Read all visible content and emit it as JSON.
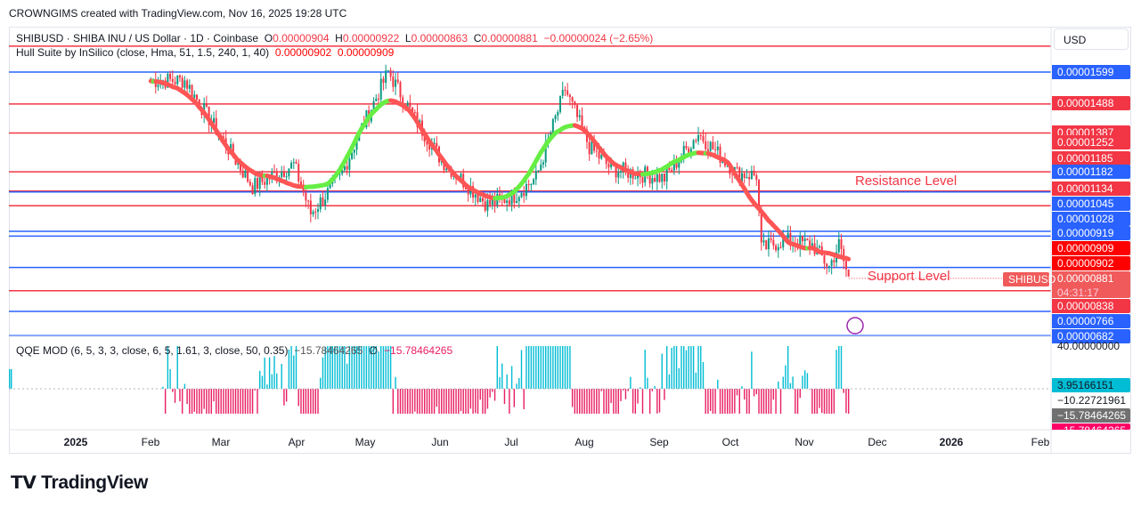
{
  "credit": "CROWNGIMS created with TradingView.com, Nov 16, 2025 19:28 UTC",
  "legend": {
    "symbol": "SHIBUSD · SHIBA INU / US Dollar · 1D · Coinbase",
    "o_label": "O",
    "o": "0.00000904",
    "h_label": "H",
    "h": "0.00000922",
    "l_label": "L",
    "l": "0.00000863",
    "c_label": "C",
    "c": "0.00000881",
    "change": "−0.00000024 (−2.65%)",
    "hull": "Hull Suite by InSilico (close, Hma, 51, 1.5, 240, 1, 40)",
    "hull_v1": "0.00000902",
    "hull_v2": "0.00000909",
    "qqe": "QQE MOD (6, 5, 3, 3, close, 6, 5, 1.61, 3, close, 50, 0.35)",
    "qqe_v1": "−15.78464265",
    "qqe_sym": "∅",
    "qqe_v2": "−15.78464265"
  },
  "currency": "USD",
  "colors": {
    "red": "#f23645",
    "blue": "#2962ff",
    "up": "#089981",
    "down": "#f23645",
    "hull_up": "#66ee44",
    "hull_down": "#ff5555",
    "qqe_up": "#00bcd4",
    "qqe_down": "#e91e63"
  },
  "chart_data": {
    "type": "candlestick",
    "ylim": [
      6.82e-06,
      1.689e-05
    ],
    "horizontal_levels": [
      {
        "value": 1.689e-05,
        "color": "red",
        "label": ""
      },
      {
        "value": 1.599e-05,
        "color": "blue",
        "label": "0.00001599"
      },
      {
        "value": 1.488e-05,
        "color": "red",
        "label": "0.00001488"
      },
      {
        "value": 1.387e-05,
        "color": "red",
        "label": "0.00001387"
      },
      {
        "value": 1.252e-05,
        "color": "red",
        "label": "0.00001252"
      },
      {
        "value": 1.185e-05,
        "color": "red",
        "label": "0.00001185"
      },
      {
        "value": 1.182e-05,
        "color": "blue",
        "label": "0.00001182"
      },
      {
        "value": 1.134e-05,
        "color": "red",
        "label": "0.00001134"
      },
      {
        "value": 1.045e-05,
        "color": "blue",
        "label": "0.00001045"
      },
      {
        "value": 1.028e-05,
        "color": "blue",
        "label": "0.00001028"
      },
      {
        "value": 9.19e-06,
        "color": "blue",
        "label": "0.00000919"
      },
      {
        "value": 8.38e-06,
        "color": "red",
        "label": "0.00000838"
      },
      {
        "value": 7.66e-06,
        "color": "blue",
        "label": "0.00000766"
      },
      {
        "value": 6.82e-06,
        "color": "blue",
        "label": "0.00000682"
      }
    ],
    "hull_labels": [
      "0.00000909",
      "0.00000902"
    ],
    "last_price": {
      "label": "0.00000881",
      "countdown": "04:31:17",
      "symbol": "SHIBUSD"
    },
    "approx_close_path": [
      [
        "2025-02-01",
        1.57e-05
      ],
      [
        "2025-02-15",
        1.57e-05
      ],
      [
        "2025-03-01",
        1.385e-05
      ],
      [
        "2025-03-15",
        1.2e-05
      ],
      [
        "2025-04-01",
        1.277e-05
      ],
      [
        "2025-04-08",
        1.107e-05
      ],
      [
        "2025-04-20",
        1.23e-05
      ],
      [
        "2025-04-28",
        1.385e-05
      ],
      [
        "2025-05-10",
        1.6e-05
      ],
      [
        "2025-05-20",
        1.45e-05
      ],
      [
        "2025-06-01",
        1.293e-05
      ],
      [
        "2025-06-20",
        1.138e-05
      ],
      [
        "2025-07-01",
        1.169e-05
      ],
      [
        "2025-07-10",
        1.23e-05
      ],
      [
        "2025-07-22",
        1.54e-05
      ],
      [
        "2025-08-01",
        1.339e-05
      ],
      [
        "2025-08-10",
        1.262e-05
      ],
      [
        "2025-09-01",
        1.23e-05
      ],
      [
        "2025-09-15",
        1.385e-05
      ],
      [
        "2025-10-01",
        1.246e-05
      ],
      [
        "2025-10-09",
        1.24e-05
      ],
      [
        "2025-10-11",
        9.83e-06
      ],
      [
        "2025-10-20",
        1.014e-05
      ],
      [
        "2025-11-01",
        9.98e-06
      ],
      [
        "2025-11-08",
        9.21e-06
      ],
      [
        "2025-11-12",
        9.98e-06
      ],
      [
        "2025-11-16",
        8.81e-06
      ]
    ],
    "annotations": [
      "Resistance Level",
      "Support Level"
    ],
    "qqe_axis": [
      "40.00000000",
      "3.95166151",
      "−10.22721961",
      "−15.78464265",
      "−15.78464265"
    ],
    "x_ticks": [
      "2025",
      "Feb",
      "Mar",
      "Apr",
      "May",
      "Jun",
      "Jul",
      "Aug",
      "Sep",
      "Oct",
      "Nov",
      "Dec",
      "2026",
      "Feb"
    ]
  },
  "brand": "TradingView"
}
